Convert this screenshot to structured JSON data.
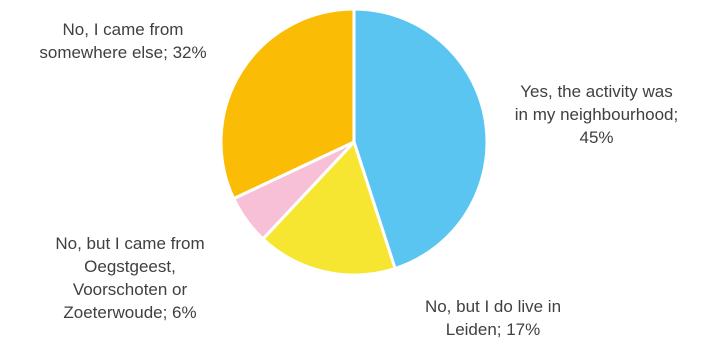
{
  "chart_data": {
    "type": "pie",
    "title": "",
    "start_angle_deg": 0,
    "direction": "clockwise",
    "slice_border_color": "#ffffff",
    "slices": [
      {
        "label": "Yes, the activity was\nin my neighbourhood;\n45%",
        "value": 45,
        "color": "#5BC5F2"
      },
      {
        "label": "No, but I do live in\nLeiden; 17%",
        "value": 17,
        "color": "#F7E631"
      },
      {
        "label": "No, but I came from\nOegstgeest,\nVoorschoten or\nZoeterwoude; 6%",
        "value": 6,
        "color": "#F7C0D6"
      },
      {
        "label": "No, I came from\nsomewhere else; 32%",
        "value": 32,
        "color": "#FBBC05"
      }
    ]
  }
}
